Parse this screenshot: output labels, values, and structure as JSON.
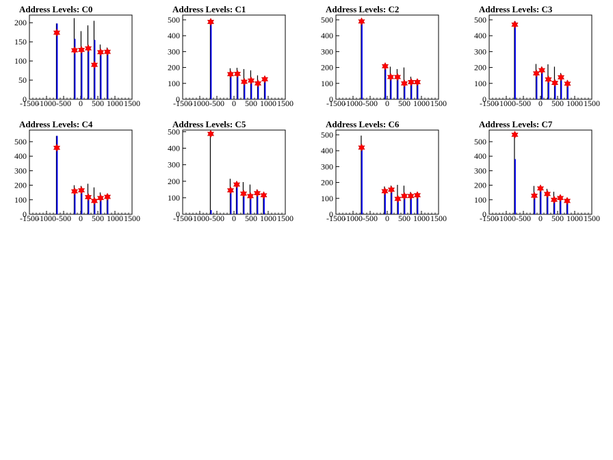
{
  "chart_data": [
    {
      "type": "histogram",
      "title": "Address Levels: C0",
      "xlim": [
        -1500,
        1500
      ],
      "ylim": [
        0,
        220
      ],
      "xticks": [
        "-1500",
        "-1000",
        "-500",
        "0",
        "500",
        "1000",
        "1500"
      ],
      "yticks": [
        "0",
        "50",
        "100",
        "150",
        "200"
      ],
      "peaks": [
        {
          "x": -700,
          "black": 198,
          "blue": 198
        },
        {
          "x": -180,
          "black": 212,
          "blue": 158
        },
        {
          "x": 20,
          "black": 178,
          "blue": 130
        },
        {
          "x": 220,
          "black": 193,
          "blue": 138
        },
        {
          "x": 400,
          "black": 205,
          "blue": 155
        },
        {
          "x": 580,
          "black": 143,
          "blue": 128
        },
        {
          "x": 780,
          "black": 135,
          "blue": 128
        }
      ],
      "markers": [
        {
          "x": -700,
          "y": 174
        },
        {
          "x": -180,
          "y": 128
        },
        {
          "x": 20,
          "y": 129
        },
        {
          "x": 220,
          "y": 133
        },
        {
          "x": 400,
          "y": 90
        },
        {
          "x": 580,
          "y": 123
        },
        {
          "x": 780,
          "y": 124
        }
      ]
    },
    {
      "type": "histogram",
      "title": "Address Levels: C1",
      "xlim": [
        -1500,
        1500
      ],
      "ylim": [
        0,
        530
      ],
      "xticks": [
        "-1500",
        "-1000",
        "-500",
        "0",
        "500",
        "1000",
        "1500"
      ],
      "yticks": [
        "0",
        "100",
        "200",
        "300",
        "400",
        "500"
      ],
      "peaks": [
        {
          "x": -680,
          "black": 498,
          "blue": 498
        },
        {
          "x": -100,
          "black": 195,
          "blue": 162
        },
        {
          "x": 100,
          "black": 198,
          "blue": 160
        },
        {
          "x": 300,
          "black": 190,
          "blue": 112
        },
        {
          "x": 500,
          "black": 182,
          "blue": 120
        },
        {
          "x": 700,
          "black": 150,
          "blue": 98
        },
        {
          "x": 900,
          "black": 128,
          "blue": 120
        }
      ],
      "markers": [
        {
          "x": -680,
          "y": 487
        },
        {
          "x": -100,
          "y": 158
        },
        {
          "x": 100,
          "y": 160
        },
        {
          "x": 300,
          "y": 110
        },
        {
          "x": 500,
          "y": 118
        },
        {
          "x": 700,
          "y": 100
        },
        {
          "x": 900,
          "y": 126
        }
      ]
    },
    {
      "type": "histogram",
      "title": "Address Levels: C2",
      "xlim": [
        -1500,
        1500
      ],
      "ylim": [
        0,
        530
      ],
      "xticks": [
        "-1500",
        "-1000",
        "-500",
        "0",
        "500",
        "1000",
        "1500"
      ],
      "yticks": [
        "0",
        "100",
        "200",
        "300",
        "400",
        "500"
      ],
      "peaks": [
        {
          "x": -750,
          "black": 498,
          "blue": 498
        },
        {
          "x": -60,
          "black": 215,
          "blue": 190
        },
        {
          "x": 100,
          "black": 205,
          "blue": 148
        },
        {
          "x": 300,
          "black": 190,
          "blue": 140
        },
        {
          "x": 500,
          "black": 200,
          "blue": 110
        },
        {
          "x": 700,
          "black": 142,
          "blue": 105
        },
        {
          "x": 880,
          "black": 118,
          "blue": 110
        }
      ],
      "markers": [
        {
          "x": -750,
          "y": 490
        },
        {
          "x": -60,
          "y": 208
        },
        {
          "x": 100,
          "y": 140
        },
        {
          "x": 300,
          "y": 140
        },
        {
          "x": 500,
          "y": 100
        },
        {
          "x": 700,
          "y": 108
        },
        {
          "x": 880,
          "y": 108
        }
      ]
    },
    {
      "type": "histogram",
      "title": "Address Levels: C3",
      "xlim": [
        -1500,
        1500
      ],
      "ylim": [
        0,
        530
      ],
      "xticks": [
        "-1500",
        "-1000",
        "-500",
        "0",
        "500",
        "1000",
        "1500"
      ],
      "yticks": [
        "0",
        "100",
        "200",
        "300",
        "400",
        "500"
      ],
      "peaks": [
        {
          "x": -750,
          "black": 490,
          "blue": 490
        },
        {
          "x": -120,
          "black": 222,
          "blue": 165
        },
        {
          "x": 40,
          "black": 205,
          "blue": 185
        },
        {
          "x": 230,
          "black": 220,
          "blue": 125
        },
        {
          "x": 420,
          "black": 205,
          "blue": 110
        },
        {
          "x": 600,
          "black": 165,
          "blue": 135
        },
        {
          "x": 790,
          "black": 118,
          "blue": 100
        }
      ],
      "markers": [
        {
          "x": -750,
          "y": 470
        },
        {
          "x": -120,
          "y": 163
        },
        {
          "x": 40,
          "y": 183
        },
        {
          "x": 230,
          "y": 125
        },
        {
          "x": 420,
          "y": 103
        },
        {
          "x": 600,
          "y": 138
        },
        {
          "x": 790,
          "y": 98
        }
      ]
    },
    {
      "type": "histogram",
      "title": "Address Levels: C4",
      "xlim": [
        -1500,
        1500
      ],
      "ylim": [
        0,
        580
      ],
      "xticks": [
        "-1500",
        "-1000",
        "-500",
        "0",
        "500",
        "1000",
        "1500"
      ],
      "yticks": [
        "0",
        "100",
        "200",
        "300",
        "400",
        "500"
      ],
      "peaks": [
        {
          "x": -700,
          "black": 540,
          "blue": 540
        },
        {
          "x": -180,
          "black": 200,
          "blue": 165
        },
        {
          "x": 20,
          "black": 195,
          "blue": 168
        },
        {
          "x": 220,
          "black": 210,
          "blue": 120
        },
        {
          "x": 400,
          "black": 185,
          "blue": 95
        },
        {
          "x": 580,
          "black": 150,
          "blue": 110
        },
        {
          "x": 780,
          "black": 135,
          "blue": 122
        }
      ],
      "markers": [
        {
          "x": -700,
          "y": 458
        },
        {
          "x": -180,
          "y": 158
        },
        {
          "x": 20,
          "y": 165
        },
        {
          "x": 220,
          "y": 118
        },
        {
          "x": 400,
          "y": 92
        },
        {
          "x": 580,
          "y": 112
        },
        {
          "x": 780,
          "y": 120
        }
      ]
    },
    {
      "type": "histogram",
      "title": "Address Levels: C5",
      "xlim": [
        -1500,
        1500
      ],
      "ylim": [
        0,
        510
      ],
      "xticks": [
        "-1500",
        "-1000",
        "-500",
        "0",
        "500",
        "1000",
        "1500"
      ],
      "yticks": [
        "0",
        "100",
        "200",
        "300",
        "400",
        "500"
      ],
      "peaks": [
        {
          "x": -680,
          "black": 500,
          "blue": 25
        },
        {
          "x": -100,
          "black": 215,
          "blue": 145
        },
        {
          "x": 80,
          "black": 190,
          "blue": 180
        },
        {
          "x": 280,
          "black": 195,
          "blue": 130
        },
        {
          "x": 480,
          "black": 180,
          "blue": 110
        },
        {
          "x": 680,
          "black": 150,
          "blue": 130
        },
        {
          "x": 870,
          "black": 120,
          "blue": 112
        }
      ],
      "markers": [
        {
          "x": -680,
          "y": 487
        },
        {
          "x": -100,
          "y": 145
        },
        {
          "x": 80,
          "y": 180
        },
        {
          "x": 280,
          "y": 125
        },
        {
          "x": 480,
          "y": 110
        },
        {
          "x": 680,
          "y": 128
        },
        {
          "x": 870,
          "y": 115
        }
      ]
    },
    {
      "type": "histogram",
      "title": "Address Levels: C6",
      "xlim": [
        -1500,
        1500
      ],
      "ylim": [
        0,
        530
      ],
      "xticks": [
        "-1500",
        "-1000",
        "-500",
        "0",
        "500",
        "1000",
        "1500"
      ],
      "yticks": [
        "0",
        "100",
        "200",
        "300",
        "400",
        "500"
      ],
      "peaks": [
        {
          "x": -750,
          "black": 495,
          "blue": 420
        },
        {
          "x": -70,
          "black": 175,
          "blue": 150
        },
        {
          "x": 120,
          "black": 180,
          "blue": 155
        },
        {
          "x": 310,
          "black": 185,
          "blue": 95
        },
        {
          "x": 500,
          "black": 180,
          "blue": 120
        },
        {
          "x": 690,
          "black": 140,
          "blue": 115
        },
        {
          "x": 880,
          "black": 130,
          "blue": 120
        }
      ],
      "markers": [
        {
          "x": -750,
          "y": 420
        },
        {
          "x": -70,
          "y": 145
        },
        {
          "x": 120,
          "y": 155
        },
        {
          "x": 310,
          "y": 97
        },
        {
          "x": 500,
          "y": 115
        },
        {
          "x": 690,
          "y": 115
        },
        {
          "x": 880,
          "y": 120
        }
      ]
    },
    {
      "type": "histogram",
      "title": "Address Levels: C7",
      "xlim": [
        -1500,
        1500
      ],
      "ylim": [
        0,
        580
      ],
      "xticks": [
        "-1500",
        "-1000",
        "-500",
        "0",
        "500",
        "1000",
        "1500"
      ],
      "yticks": [
        "0",
        "100",
        "200",
        "300",
        "400",
        "500"
      ],
      "peaks": [
        {
          "x": -750,
          "black": 555,
          "blue": 380
        },
        {
          "x": -180,
          "black": 195,
          "blue": 130
        },
        {
          "x": 0,
          "black": 190,
          "blue": 180
        },
        {
          "x": 200,
          "black": 175,
          "blue": 140
        },
        {
          "x": 400,
          "black": 155,
          "blue": 100
        },
        {
          "x": 580,
          "black": 130,
          "blue": 115
        },
        {
          "x": 780,
          "black": 110,
          "blue": 95
        }
      ],
      "markers": [
        {
          "x": -750,
          "y": 548
        },
        {
          "x": -180,
          "y": 128
        },
        {
          "x": 0,
          "y": 178
        },
        {
          "x": 200,
          "y": 140
        },
        {
          "x": 400,
          "y": 100
        },
        {
          "x": 580,
          "y": 112
        },
        {
          "x": 780,
          "y": 92
        }
      ]
    }
  ],
  "colors": {
    "black_series": "#000000",
    "blue_series": "#0000ff",
    "marker_fill": "#ff0000",
    "marker_stroke": "#cc0000"
  }
}
